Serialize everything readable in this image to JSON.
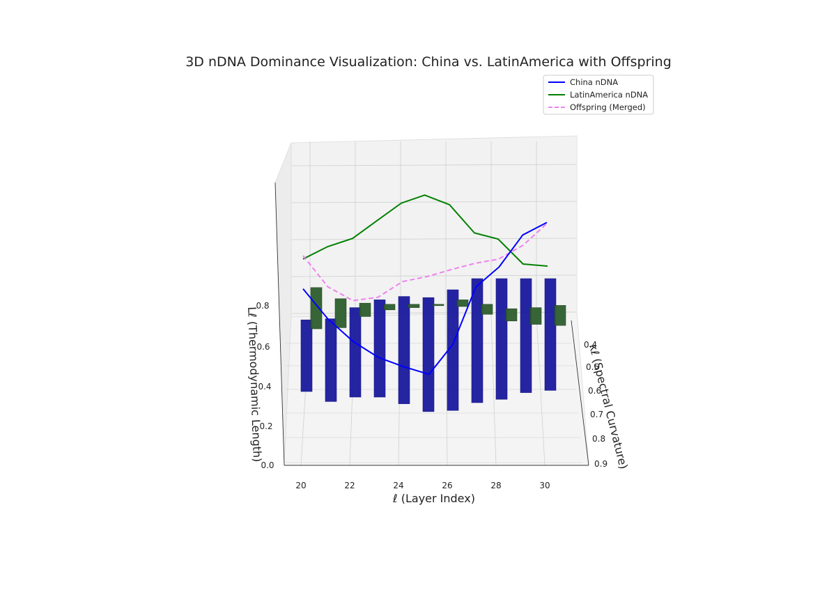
{
  "chart_data": {
    "type": "bar3d+line3d",
    "title": "3D nDNA Dominance Visualization: China vs. LatinAmerica with Offspring",
    "xlabel": "ℓ (Layer Index)",
    "ylabel": "κℓ (Spectral Curvature)",
    "zlabel": "Lℓ (Thermodynamic Length)",
    "x_ticks": [
      "20",
      "22",
      "24",
      "26",
      "28",
      "30"
    ],
    "y_ticks": [
      "0.4",
      "0.5",
      "0.6",
      "0.7",
      "0.8",
      "0.9"
    ],
    "z_ticks": [
      "0.0",
      "0.2",
      "0.4",
      "0.6",
      "0.8"
    ],
    "grid": true,
    "legend_position": "top-right",
    "legend": [
      {
        "name": "China nDNA",
        "color": "#0000ff",
        "style": "solid"
      },
      {
        "name": "LatinAmerica nDNA",
        "color": "#008000",
        "style": "solid"
      },
      {
        "name": "Offspring (Merged)",
        "color": "#ee82ee",
        "style": "dashed"
      }
    ],
    "layers": [
      20,
      21,
      22,
      23,
      24,
      25,
      26,
      27,
      28,
      29,
      30
    ],
    "series": [
      {
        "name": "China nDNA",
        "color": "#0000ff",
        "curvature": [
          0.55,
          0.6,
          0.66,
          0.72,
          0.78,
          0.84,
          0.8,
          0.7,
          0.62,
          0.57,
          0.55
        ],
        "length": [
          0.8,
          0.68,
          0.62,
          0.6,
          0.62,
          0.65,
          0.78,
          1.0,
          1.02,
          1.15,
          1.2
        ]
      },
      {
        "name": "LatinAmerica nDNA",
        "color": "#008000",
        "curvature": [
          0.55,
          0.57,
          0.61,
          0.62,
          0.6,
          0.53,
          0.56,
          0.6,
          0.55,
          0.59,
          0.6
        ],
        "length": [
          0.98,
          1.08,
          1.18,
          1.3,
          1.38,
          1.34,
          1.32,
          1.2,
          1.1,
          1.0,
          1.0
        ]
      }
    ],
    "offspring": {
      "name": "Offspring (Merged)",
      "color": "#ee82ee",
      "curvature": [
        0.55,
        0.58,
        0.63,
        0.67,
        0.69,
        0.69,
        0.68,
        0.65,
        0.59,
        0.58,
        0.57
      ],
      "length": [
        1.0,
        0.85,
        0.83,
        0.9,
        1.02,
        1.05,
        1.08,
        1.08,
        1.03,
        1.1,
        1.22
      ]
    },
    "bars": [
      {
        "series": "China nDNA",
        "color": "#1a1a9e",
        "z_bottom": [
          0.55,
          0.46,
          0.5,
          0.5,
          0.44,
          0.37,
          0.38,
          0.45,
          0.48,
          0.54,
          0.56
        ],
        "z_top": [
          0.63,
          0.64,
          0.74,
          0.81,
          0.84,
          0.83,
          0.9,
          1.0,
          1.0,
          1.0,
          1.0
        ]
      },
      {
        "series": "LatinAmerica nDNA",
        "color": "#2e5e2e",
        "z_bottom": [
          0.55,
          0.56,
          0.66,
          0.72,
          0.74,
          0.76,
          0.75,
          0.68,
          0.62,
          0.59,
          0.58
        ],
        "z_top": [
          0.92,
          0.82,
          0.78,
          0.77,
          0.77,
          0.77,
          0.81,
          0.77,
          0.73,
          0.74,
          0.76
        ]
      }
    ]
  }
}
